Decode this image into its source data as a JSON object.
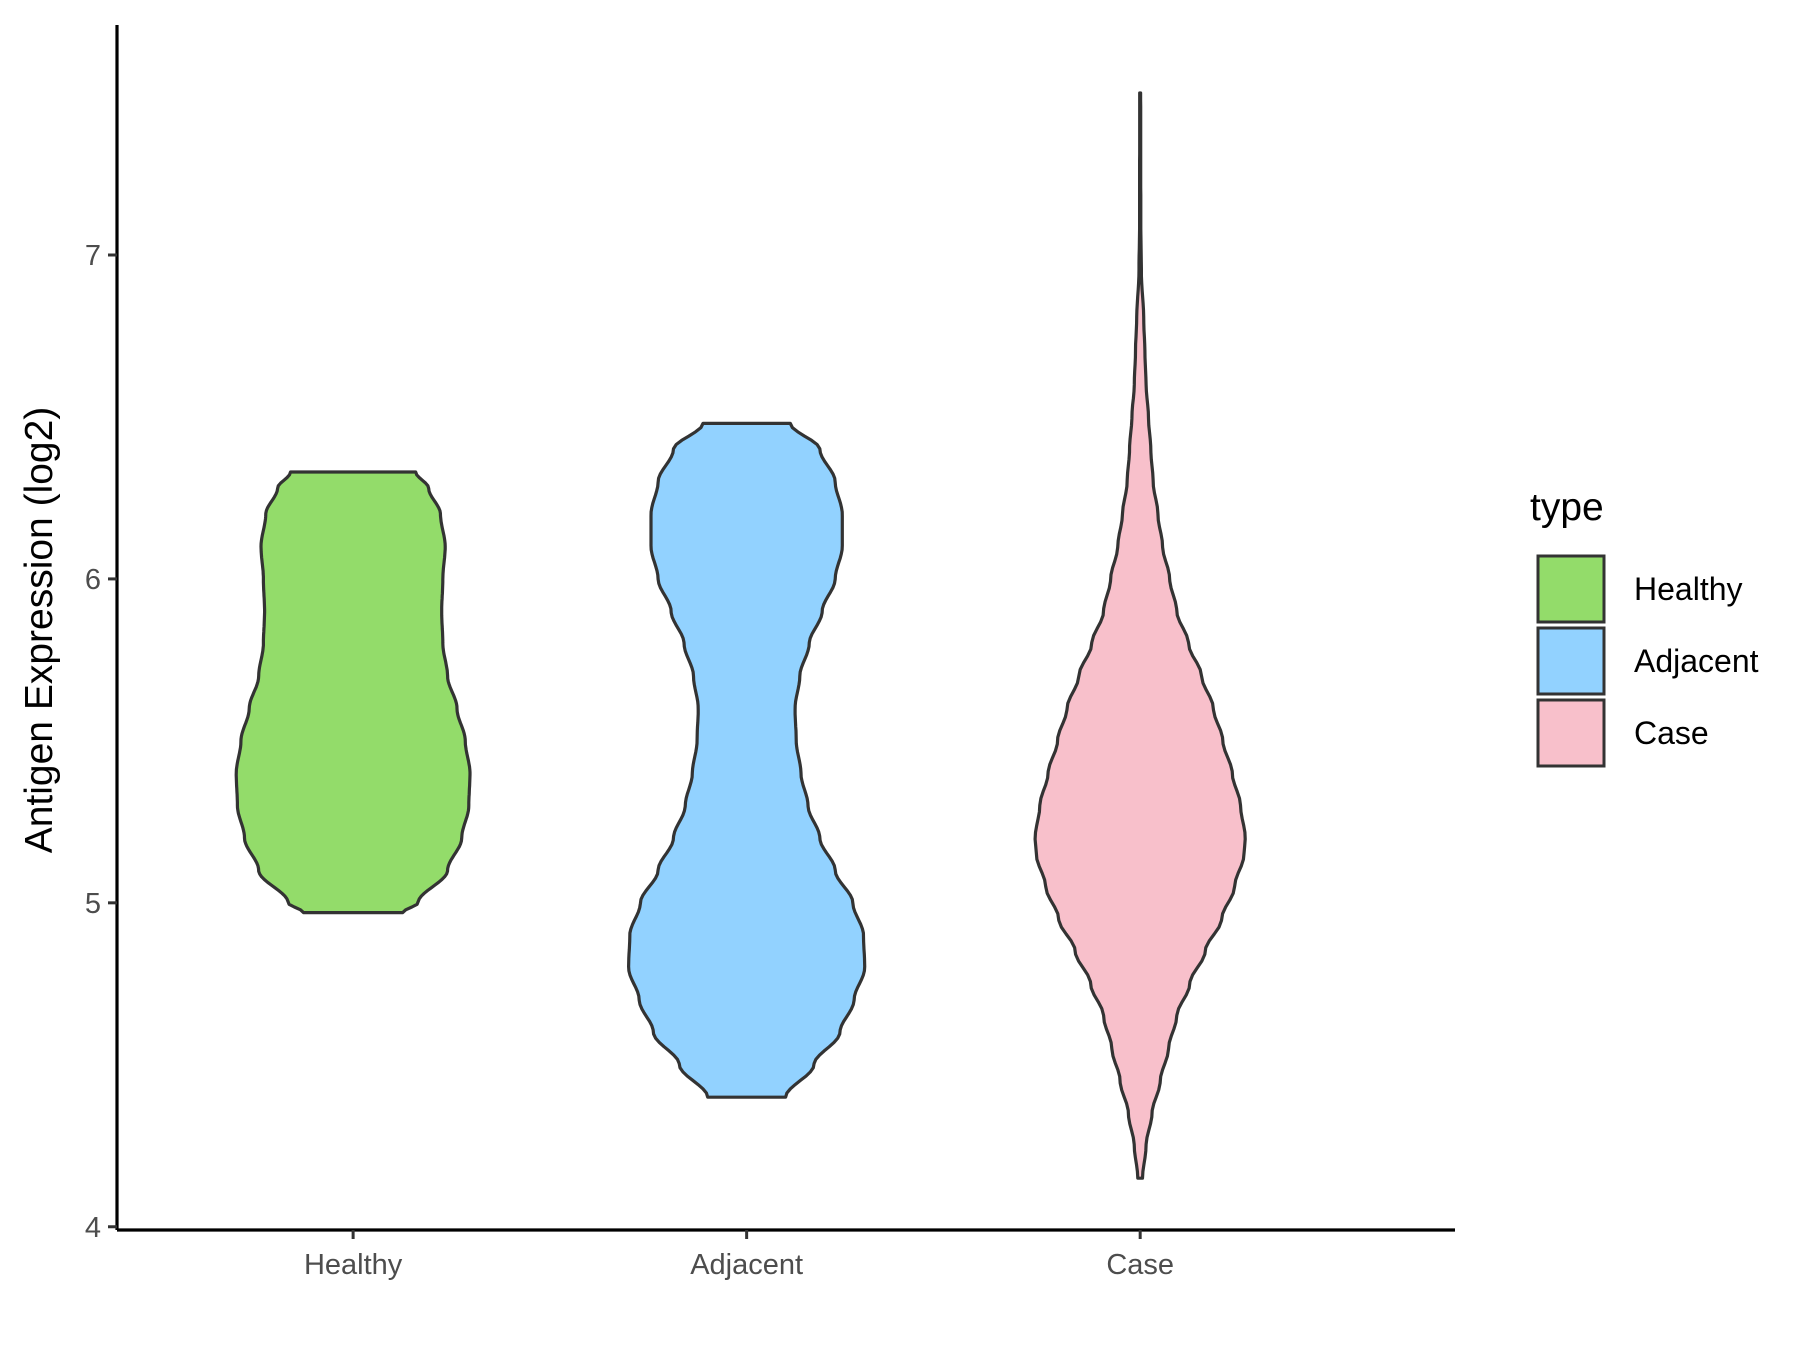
{
  "chart_data": {
    "type": "violin",
    "title": "",
    "xlabel": "",
    "ylabel": "Antigen Expression (log2)",
    "ylim": [
      3.99,
      7.71
    ],
    "yticks": [
      4,
      5,
      6,
      7
    ],
    "categories": [
      "Healthy",
      "Adjacent",
      "Case"
    ],
    "grid": false,
    "legend": {
      "title": "type",
      "placement": "right",
      "entries": [
        "Healthy",
        "Adjacent",
        "Case"
      ]
    },
    "series": [
      {
        "category": "Healthy",
        "color": "#93DC6A",
        "min": 4.97,
        "max": 6.33,
        "profile": [
          [
            4.97,
            0.42
          ],
          [
            5.0,
            0.55
          ],
          [
            5.1,
            0.8
          ],
          [
            5.2,
            0.92
          ],
          [
            5.3,
            0.98
          ],
          [
            5.4,
            0.99
          ],
          [
            5.5,
            0.95
          ],
          [
            5.6,
            0.88
          ],
          [
            5.7,
            0.8
          ],
          [
            5.8,
            0.76
          ],
          [
            5.9,
            0.75
          ],
          [
            6.0,
            0.76
          ],
          [
            6.1,
            0.78
          ],
          [
            6.2,
            0.74
          ],
          [
            6.28,
            0.64
          ],
          [
            6.33,
            0.53
          ]
        ]
      },
      {
        "category": "Adjacent",
        "color": "#92D2FF",
        "min": 4.4,
        "max": 6.48,
        "profile": [
          [
            4.4,
            0.33
          ],
          [
            4.5,
            0.57
          ],
          [
            4.6,
            0.79
          ],
          [
            4.7,
            0.91
          ],
          [
            4.8,
            1.0
          ],
          [
            4.9,
            0.99
          ],
          [
            5.0,
            0.9
          ],
          [
            5.1,
            0.75
          ],
          [
            5.2,
            0.62
          ],
          [
            5.3,
            0.52
          ],
          [
            5.4,
            0.46
          ],
          [
            5.5,
            0.42
          ],
          [
            5.6,
            0.41
          ],
          [
            5.7,
            0.45
          ],
          [
            5.8,
            0.53
          ],
          [
            5.9,
            0.64
          ],
          [
            6.0,
            0.75
          ],
          [
            6.1,
            0.81
          ],
          [
            6.2,
            0.81
          ],
          [
            6.3,
            0.75
          ],
          [
            6.4,
            0.62
          ],
          [
            6.48,
            0.37
          ]
        ]
      },
      {
        "category": "Case",
        "color": "#F8C0CB",
        "min": 4.15,
        "max": 7.5,
        "profile": [
          [
            4.15,
            0.02
          ],
          [
            4.25,
            0.05
          ],
          [
            4.35,
            0.1
          ],
          [
            4.45,
            0.17
          ],
          [
            4.55,
            0.24
          ],
          [
            4.65,
            0.31
          ],
          [
            4.75,
            0.42
          ],
          [
            4.85,
            0.55
          ],
          [
            4.95,
            0.69
          ],
          [
            5.05,
            0.8
          ],
          [
            5.15,
            0.88
          ],
          [
            5.2,
            0.89
          ],
          [
            5.3,
            0.85
          ],
          [
            5.4,
            0.78
          ],
          [
            5.5,
            0.7
          ],
          [
            5.6,
            0.62
          ],
          [
            5.7,
            0.52
          ],
          [
            5.8,
            0.41
          ],
          [
            5.9,
            0.31
          ],
          [
            6.0,
            0.25
          ],
          [
            6.1,
            0.19
          ],
          [
            6.2,
            0.15
          ],
          [
            6.3,
            0.11
          ],
          [
            6.4,
            0.09
          ],
          [
            6.5,
            0.07
          ],
          [
            6.6,
            0.05
          ],
          [
            6.7,
            0.04
          ],
          [
            6.8,
            0.03
          ],
          [
            6.95,
            0.01
          ],
          [
            7.1,
            0.005
          ],
          [
            7.5,
            0.004
          ]
        ]
      }
    ]
  }
}
